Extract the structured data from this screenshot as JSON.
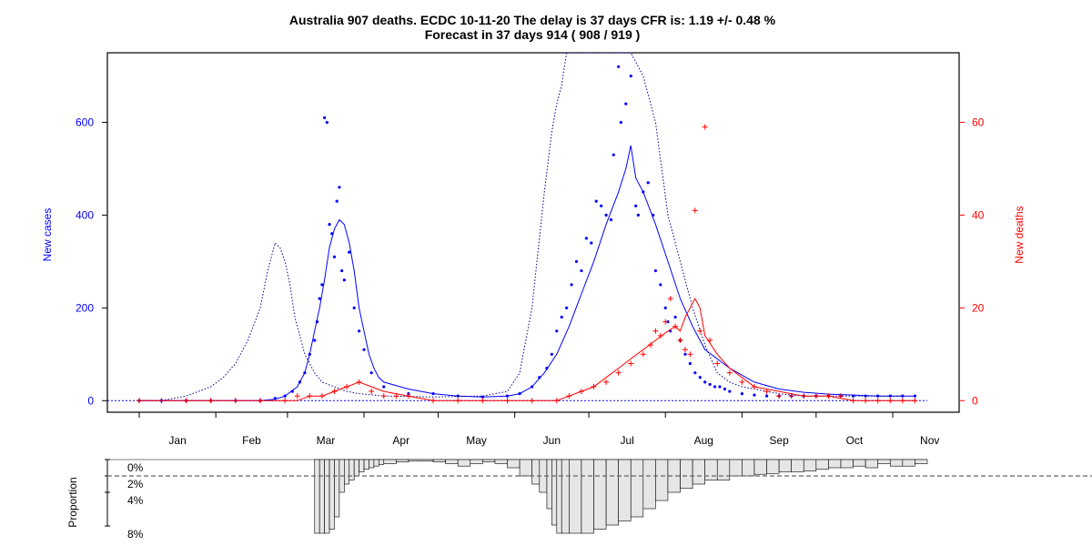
{
  "chart_data": [
    {
      "type": "line",
      "title": "Australia 907 deaths. ECDC 10-11-20 The delay is 37 days CFR is: 1.19 +/- 0.48 %",
      "subtitle": "Forecast in 37 days 914 ( 908 / 919 )",
      "ylabel_left": "New cases",
      "ylabel_right": "New deaths",
      "months": [
        "Jan",
        "Feb",
        "Mar",
        "Apr",
        "May",
        "Jun",
        "Jul",
        "Aug",
        "Sep",
        "Oct",
        "Nov"
      ],
      "x_range_days": [
        1,
        320
      ],
      "ylim_left": [
        -25,
        750
      ],
      "ylim_right": [
        -2.5,
        75
      ],
      "yticks_left": [
        0,
        200,
        400,
        600
      ],
      "yticks_right": [
        0,
        20,
        40,
        60
      ],
      "colors": {
        "cases": "#0000ff",
        "deaths": "#ff0000",
        "shifted": "#00008b"
      },
      "series": [
        {
          "name": "",
          "style": "points",
          "axis": "left",
          "color": "#0000ff",
          "x": [
            1,
            10,
            20,
            30,
            40,
            50,
            56,
            60,
            63,
            66,
            68,
            70,
            72,
            73,
            74,
            75,
            76,
            77,
            78,
            79,
            80,
            81,
            82,
            83,
            84,
            86,
            88,
            90,
            92,
            95,
            100,
            110,
            120,
            130,
            140,
            150,
            155,
            160,
            163,
            166,
            168,
            170,
            172,
            174,
            176,
            178,
            180,
            182,
            184,
            186,
            188,
            190,
            192,
            193,
            195,
            196,
            198,
            200,
            202,
            203,
            205,
            207,
            209,
            210,
            212,
            214,
            215,
            216,
            218,
            220,
            222,
            224,
            226,
            228,
            230,
            232,
            234,
            236,
            238,
            240,
            245,
            250,
            255,
            260,
            265,
            270,
            275,
            280,
            285,
            290,
            295,
            300,
            305,
            310,
            315
          ],
          "y": [
            0,
            0,
            0,
            0,
            0,
            0,
            5,
            10,
            20,
            40,
            60,
            100,
            130,
            170,
            220,
            250,
            610,
            600,
            380,
            360,
            310,
            430,
            460,
            280,
            260,
            320,
            200,
            150,
            110,
            60,
            30,
            15,
            15,
            10,
            8,
            10,
            15,
            30,
            50,
            70,
            100,
            150,
            180,
            200,
            250,
            300,
            280,
            350,
            340,
            430,
            420,
            400,
            390,
            530,
            720,
            600,
            640,
            700,
            420,
            400,
            450,
            470,
            400,
            280,
            250,
            200,
            170,
            150,
            180,
            130,
            100,
            80,
            60,
            50,
            40,
            35,
            30,
            30,
            25,
            20,
            15,
            12,
            10,
            10,
            10,
            10,
            10,
            10,
            10,
            10,
            10,
            10,
            10,
            10,
            10
          ]
        },
        {
          "name": "",
          "style": "line",
          "axis": "left",
          "color": "#0000ff",
          "x": [
            1,
            10,
            20,
            30,
            40,
            50,
            56,
            60,
            65,
            68,
            70,
            72,
            74,
            76,
            78,
            80,
            82,
            84,
            86,
            88,
            90,
            92,
            94,
            96,
            98,
            100,
            110,
            120,
            130,
            140,
            150,
            155,
            160,
            165,
            170,
            175,
            180,
            185,
            190,
            195,
            198,
            200,
            202,
            205,
            210,
            215,
            220,
            225,
            230,
            240,
            250,
            260,
            270,
            280,
            290,
            300,
            310,
            315
          ],
          "y": [
            0,
            0,
            0,
            0,
            0,
            0,
            3,
            10,
            30,
            60,
            100,
            150,
            200,
            260,
            330,
            370,
            390,
            380,
            340,
            280,
            200,
            150,
            100,
            70,
            50,
            40,
            25,
            15,
            10,
            8,
            10,
            15,
            30,
            60,
            100,
            160,
            230,
            300,
            380,
            450,
            500,
            550,
            480,
            450,
            380,
            300,
            220,
            160,
            110,
            70,
            40,
            25,
            18,
            14,
            12,
            10,
            10,
            10
          ]
        },
        {
          "name": "",
          "style": "dotted",
          "axis": "left",
          "color": "#00008b",
          "x": [
            1,
            10,
            20,
            25,
            30,
            35,
            40,
            45,
            50,
            53,
            56,
            58,
            60,
            62,
            64,
            66,
            68,
            70,
            72,
            75,
            80,
            85,
            90,
            100,
            120,
            140,
            150,
            155,
            160,
            165,
            168,
            170,
            172,
            174,
            176,
            178,
            180,
            185,
            190,
            195,
            200,
            205,
            210,
            215,
            220,
            225,
            230,
            235,
            240,
            245,
            250,
            255,
            260,
            265,
            270,
            280,
            290,
            300,
            310
          ],
          "y": [
            0,
            0,
            10,
            20,
            30,
            50,
            80,
            130,
            200,
            280,
            340,
            330,
            300,
            250,
            180,
            140,
            100,
            80,
            60,
            40,
            30,
            20,
            15,
            10,
            8,
            10,
            20,
            60,
            200,
            450,
            580,
            640,
            680,
            750,
            750,
            750,
            750,
            750,
            750,
            750,
            750,
            700,
            600,
            400,
            300,
            200,
            120,
            60,
            40,
            30,
            25,
            20,
            15,
            12,
            10,
            10,
            10,
            10,
            10
          ]
        },
        {
          "name": "",
          "style": "points",
          "axis": "right",
          "color": "#ff0000",
          "x": [
            1,
            10,
            20,
            30,
            40,
            50,
            60,
            65,
            70,
            75,
            80,
            85,
            90,
            95,
            100,
            105,
            110,
            120,
            130,
            140,
            150,
            160,
            170,
            175,
            180,
            185,
            190,
            195,
            200,
            205,
            208,
            210,
            212,
            214,
            216,
            218,
            220,
            222,
            224,
            226,
            228,
            230,
            232,
            235,
            240,
            245,
            250,
            255,
            260,
            265,
            270,
            275,
            280,
            285,
            290,
            295,
            300,
            305,
            310,
            315
          ],
          "y": [
            0,
            0,
            0,
            0,
            0,
            0,
            0,
            1,
            1,
            1,
            2,
            3,
            4,
            2,
            1,
            1,
            1,
            0,
            0,
            0,
            0,
            0,
            0,
            1,
            2,
            3,
            4,
            6,
            8,
            10,
            12,
            15,
            14,
            17,
            22,
            16,
            13,
            11,
            10,
            41,
            15,
            59,
            13,
            8,
            6,
            4,
            3,
            2,
            1,
            1,
            1,
            1,
            1,
            1,
            0,
            0,
            0,
            0,
            0,
            0
          ]
        },
        {
          "name": "",
          "style": "line",
          "axis": "right",
          "color": "#ff0000",
          "x": [
            1,
            10,
            20,
            30,
            40,
            50,
            60,
            65,
            70,
            75,
            80,
            85,
            90,
            95,
            100,
            110,
            120,
            130,
            140,
            150,
            160,
            170,
            175,
            180,
            185,
            190,
            195,
            200,
            205,
            210,
            215,
            218,
            220,
            222,
            224,
            226,
            228,
            230,
            235,
            240,
            245,
            250,
            260,
            270,
            280,
            290,
            300,
            310,
            315
          ],
          "y": [
            0,
            0,
            0,
            0,
            0,
            0,
            0,
            0,
            1,
            1,
            2,
            3,
            4,
            3,
            2,
            1,
            0,
            0,
            0,
            0,
            0,
            0,
            1,
            2,
            3,
            5,
            7,
            9,
            11,
            13,
            15,
            16,
            15,
            18,
            20,
            22,
            20,
            14,
            10,
            7,
            5,
            3,
            2,
            1,
            1,
            0,
            0,
            0,
            0
          ]
        }
      ]
    },
    {
      "type": "bar",
      "ylabel": "Proportion",
      "yticks": [
        "0%",
        "2%",
        "4%",
        "8%"
      ],
      "reference_line": "2%",
      "x_range_days": [
        1,
        320
      ],
      "x": [
        1,
        50,
        72,
        74,
        76,
        78,
        80,
        82,
        84,
        86,
        88,
        90,
        92,
        94,
        96,
        98,
        100,
        105,
        110,
        120,
        125,
        130,
        135,
        140,
        145,
        150,
        155,
        160,
        163,
        166,
        168,
        170,
        172,
        175,
        180,
        185,
        190,
        195,
        200,
        205,
        210,
        215,
        220,
        225,
        230,
        235,
        240,
        245,
        250,
        255,
        260,
        265,
        270,
        275,
        280,
        285,
        290,
        295,
        300,
        305,
        310,
        315
      ],
      "values": [
        0,
        0,
        9,
        9,
        9,
        8.5,
        7,
        4,
        3,
        2.5,
        2,
        1.5,
        1.2,
        1,
        0.8,
        0.6,
        0.5,
        0.3,
        0.2,
        0.3,
        0.5,
        0.8,
        0.5,
        0.3,
        0.5,
        1,
        2,
        3,
        4,
        6,
        8,
        9,
        9,
        9,
        9,
        8.5,
        8,
        7.5,
        7,
        6,
        5,
        4,
        3.5,
        3,
        2.5,
        2.5,
        2,
        2,
        1.8,
        1.7,
        1.5,
        1.5,
        1.4,
        1.2,
        1,
        1,
        0.8,
        1,
        0.5,
        0.8,
        0.8,
        0.5
      ]
    }
  ]
}
